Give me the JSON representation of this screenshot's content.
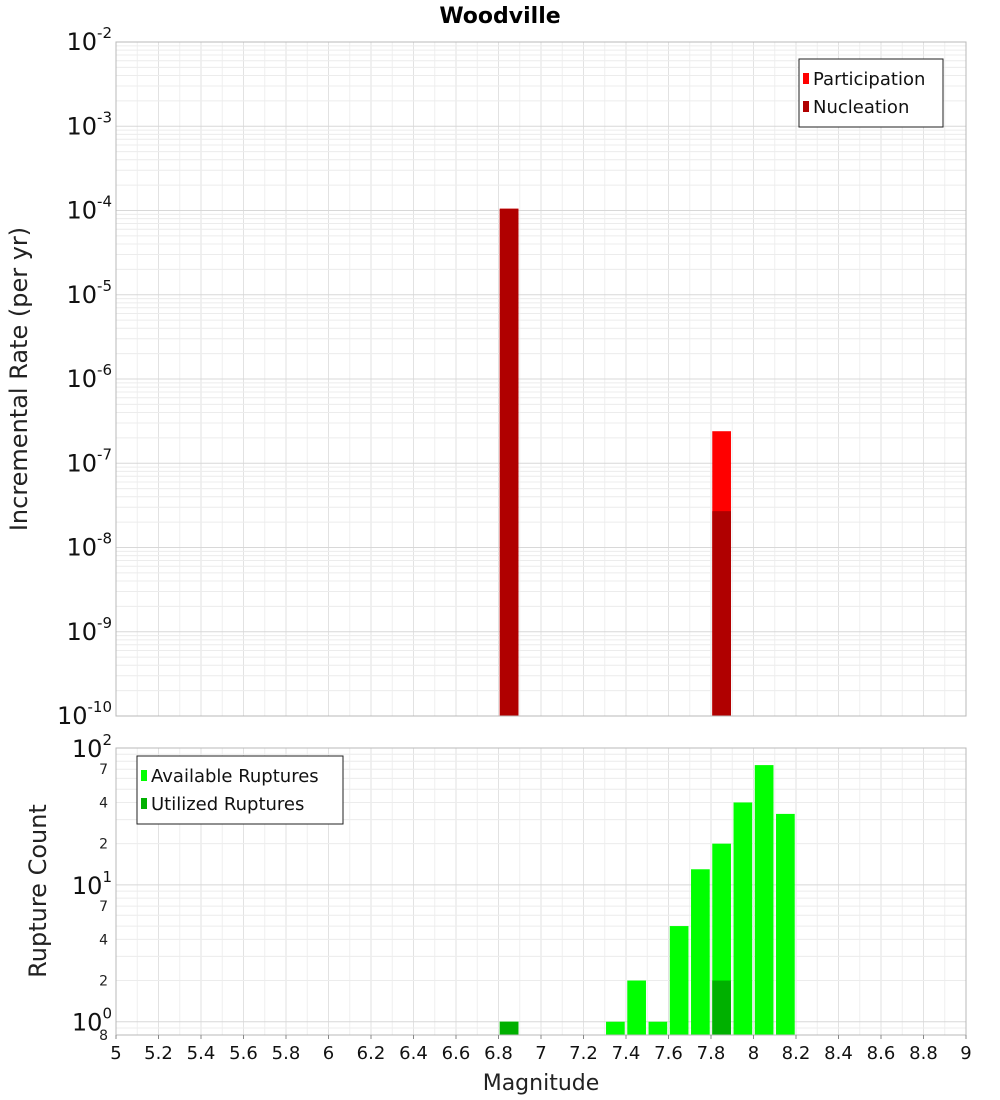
{
  "chart_data": [
    {
      "type": "bar",
      "title": "Woodville",
      "ylabel": "Incremental Rate (per yr)",
      "xlabel": "",
      "yscale": "log",
      "ylim": [
        1e-10,
        0.01
      ],
      "xlim": [
        5,
        9
      ],
      "x_ticks": [
        "5",
        "5.2",
        "5.4",
        "5.6",
        "5.8",
        "6",
        "6.2",
        "6.4",
        "6.6",
        "6.8",
        "7",
        "7.2",
        "7.4",
        "7.6",
        "7.8",
        "8",
        "8.2",
        "8.4",
        "8.6",
        "8.8",
        "9"
      ],
      "y_ticks": [
        {
          "base": "10",
          "exp": "-2"
        },
        {
          "base": "10",
          "exp": "-3"
        },
        {
          "base": "10",
          "exp": "-4"
        },
        {
          "base": "10",
          "exp": "-5"
        },
        {
          "base": "10",
          "exp": "-6"
        },
        {
          "base": "10",
          "exp": "-7"
        },
        {
          "base": "10",
          "exp": "-8"
        },
        {
          "base": "10",
          "exp": "-9"
        },
        {
          "base": "10",
          "exp": "-10"
        }
      ],
      "grid": true,
      "legend_position": "top-right",
      "series": [
        {
          "name": "Participation",
          "color": "#ff0000",
          "x": [
            6.85,
            7.85
          ],
          "values": [
            0.000105,
            2.4e-07
          ]
        },
        {
          "name": "Nucleation",
          "color": "#b00000",
          "x": [
            6.85,
            7.85
          ],
          "values": [
            0.000105,
            2.7e-08
          ]
        }
      ]
    },
    {
      "type": "bar",
      "title": "",
      "ylabel": "Rupture Count",
      "xlabel": "Magnitude",
      "yscale": "log",
      "ylim": [
        0.8,
        100
      ],
      "xlim": [
        5,
        9
      ],
      "x_ticks": [
        "5",
        "5.2",
        "5.4",
        "5.6",
        "5.8",
        "6",
        "6.2",
        "6.4",
        "6.6",
        "6.8",
        "7",
        "7.2",
        "7.4",
        "7.6",
        "7.8",
        "8",
        "8.2",
        "8.4",
        "8.6",
        "8.8",
        "9"
      ],
      "y_major_ticks": [
        {
          "value": 100,
          "base": "10",
          "exp": "2"
        },
        {
          "value": 10,
          "base": "10",
          "exp": "1"
        },
        {
          "value": 1,
          "base": "10",
          "exp": "0"
        }
      ],
      "y_minor_ticks": [
        {
          "value": 70,
          "label": "7"
        },
        {
          "value": 40,
          "label": "4"
        },
        {
          "value": 20,
          "label": "2"
        },
        {
          "value": 7,
          "label": "7"
        },
        {
          "value": 4,
          "label": "4"
        },
        {
          "value": 2,
          "label": "2"
        },
        {
          "value": 0.8,
          "label": "8"
        }
      ],
      "grid": true,
      "legend_position": "top-left",
      "series": [
        {
          "name": "Available Ruptures",
          "color": "#00ff00",
          "x": [
            6.85,
            7.35,
            7.45,
            7.55,
            7.65,
            7.75,
            7.85,
            7.95,
            8.05,
            8.15
          ],
          "values": [
            1,
            1,
            2,
            1,
            5,
            13,
            20,
            40,
            75,
            33
          ]
        },
        {
          "name": "Utilized Ruptures",
          "color": "#00b000",
          "x": [
            6.85,
            7.85
          ],
          "values": [
            1,
            2
          ]
        }
      ]
    }
  ]
}
